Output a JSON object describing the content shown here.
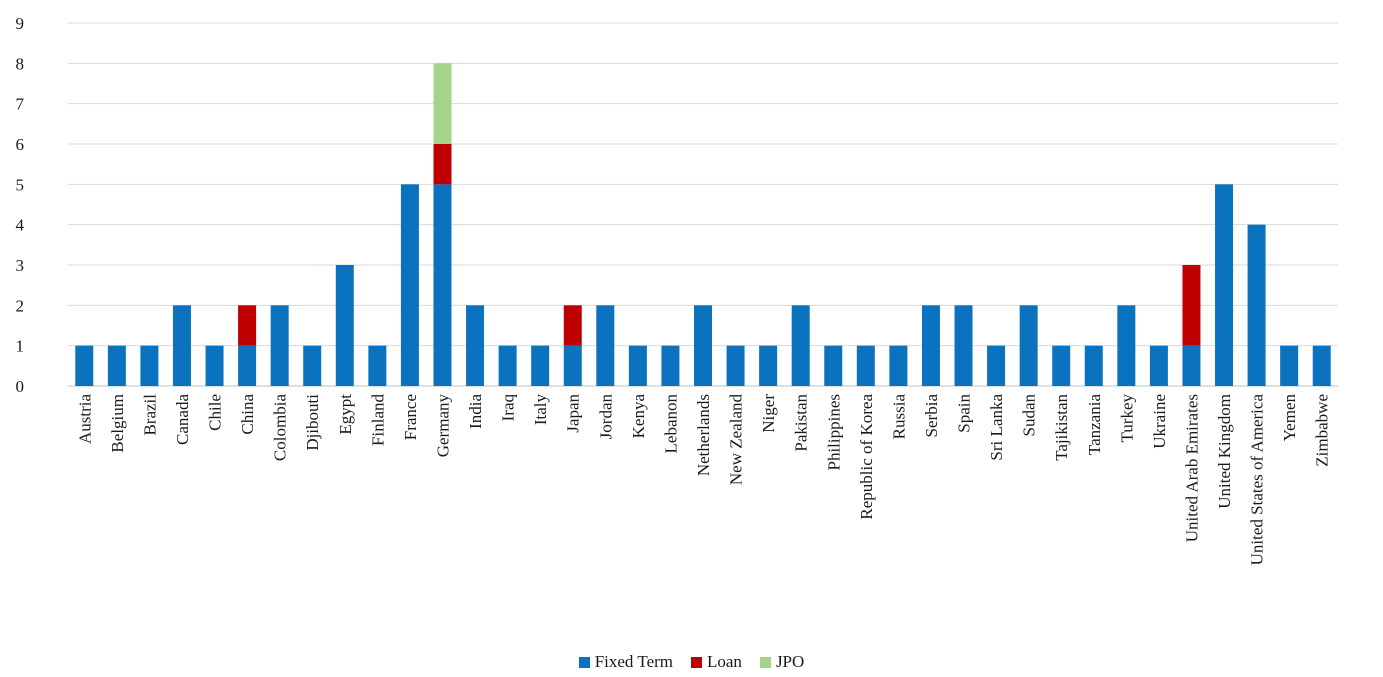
{
  "chart_data": {
    "type": "bar",
    "stacked": true,
    "categories": [
      "Austria",
      "Belgium",
      "Brazil",
      "Canada",
      "Chile",
      "China",
      "Colombia",
      "Djibouti",
      "Egypt",
      "Finland",
      "France",
      "Germany",
      "India",
      "Iraq",
      "Italy",
      "Japan",
      "Jordan",
      "Kenya",
      "Lebanon",
      "Netherlands",
      "New Zealand",
      "Niger",
      "Pakistan",
      "Philippines",
      "Republic of Korea",
      "Russia",
      "Serbia",
      "Spain",
      "Sri Lanka",
      "Sudan",
      "Tajikistan",
      "Tanzania",
      "Turkey",
      "Ukraine",
      "United Arab Emirates",
      "United Kingdom",
      "United States of America",
      "Yemen",
      "Zimbabwe"
    ],
    "series": [
      {
        "name": "Fixed Term",
        "color": "#0b72c0",
        "values": [
          1,
          1,
          1,
          2,
          1,
          1,
          2,
          1,
          3,
          1,
          5,
          5,
          2,
          1,
          1,
          1,
          2,
          1,
          1,
          2,
          1,
          1,
          2,
          1,
          1,
          1,
          2,
          2,
          1,
          2,
          1,
          1,
          2,
          1,
          1,
          5,
          4,
          1,
          1
        ]
      },
      {
        "name": "Loan",
        "color": "#c00000",
        "values": [
          0,
          0,
          0,
          0,
          0,
          1,
          0,
          0,
          0,
          0,
          0,
          1,
          0,
          0,
          0,
          1,
          0,
          0,
          0,
          0,
          0,
          0,
          0,
          0,
          0,
          0,
          0,
          0,
          0,
          0,
          0,
          0,
          0,
          0,
          2,
          0,
          0,
          0,
          0
        ]
      },
      {
        "name": "JPO",
        "color": "#a6d38a",
        "values": [
          0,
          0,
          0,
          0,
          0,
          0,
          0,
          0,
          0,
          0,
          0,
          2,
          0,
          0,
          0,
          0,
          0,
          0,
          0,
          0,
          0,
          0,
          0,
          0,
          0,
          0,
          0,
          0,
          0,
          0,
          0,
          0,
          0,
          0,
          0,
          0,
          0,
          0,
          0
        ]
      }
    ],
    "ylim": [
      0,
      9
    ],
    "yticks": [
      "0",
      "1",
      "2",
      "3",
      "4",
      "5",
      "6",
      "7",
      "8",
      "9"
    ],
    "grid": true,
    "legend_position": "bottom",
    "title": "",
    "xlabel": "",
    "ylabel": ""
  }
}
